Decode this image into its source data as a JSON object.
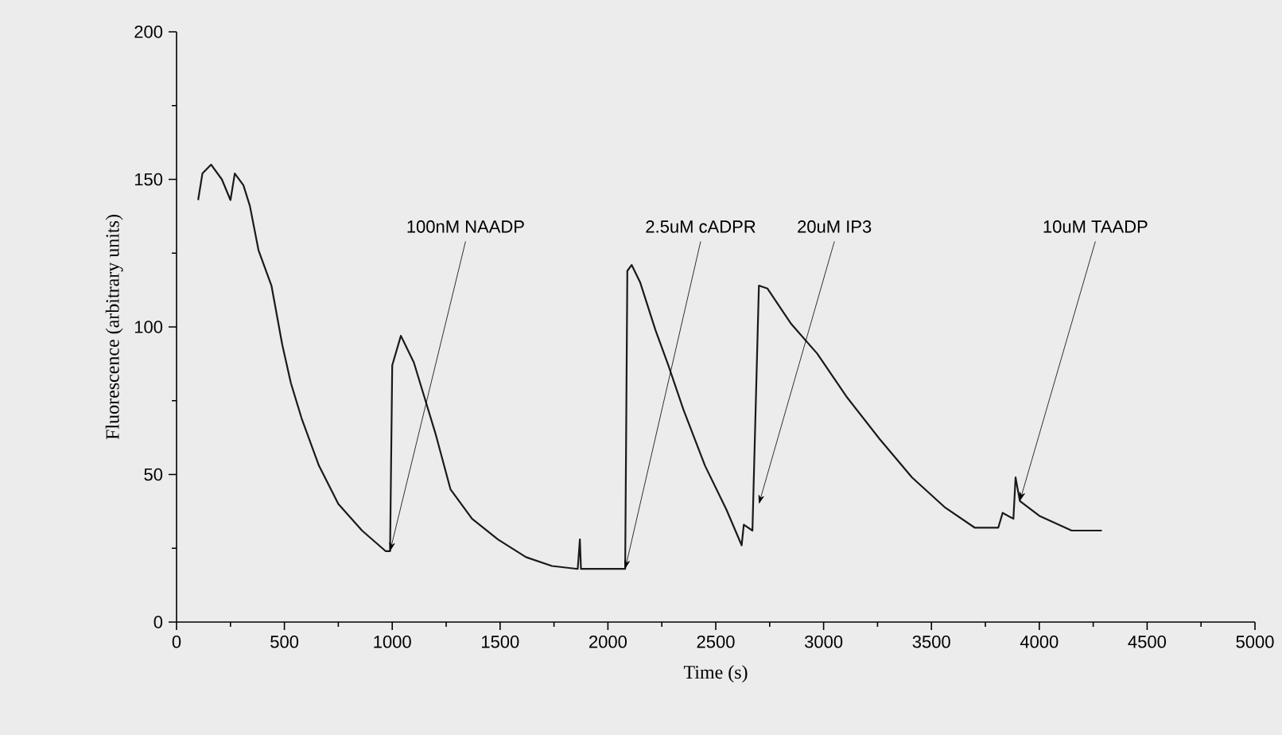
{
  "chart_data": {
    "type": "line",
    "xlabel": "Time (s)",
    "ylabel": "Fluorescence (arbitrary units)",
    "xlim": [
      0,
      5000
    ],
    "ylim": [
      0,
      200
    ],
    "xticks": [
      0,
      500,
      1000,
      1500,
      2000,
      2500,
      3000,
      3500,
      4000,
      4500,
      5000
    ],
    "yticks": [
      0,
      50,
      100,
      150,
      200
    ],
    "grid": false,
    "marker": "none",
    "line_style": "solid",
    "series": [
      {
        "color": "#1a1a1a",
        "x": [
          100,
          120,
          160,
          210,
          250,
          270,
          310,
          340,
          380,
          440,
          490,
          530,
          580,
          660,
          750,
          860,
          970,
          990,
          1000,
          1040,
          1100,
          1150,
          1200,
          1270,
          1370,
          1490,
          1620,
          1740,
          1860,
          1870,
          1875,
          1880,
          2080,
          2090,
          2110,
          2150,
          2220,
          2280,
          2350,
          2450,
          2550,
          2620,
          2630,
          2670,
          2700,
          2740,
          2850,
          2970,
          3110,
          3260,
          3410,
          3560,
          3700,
          3810,
          3830,
          3880,
          3890,
          3910,
          4000,
          4150,
          4290
        ],
        "values": [
          143,
          152,
          155,
          150,
          143,
          152,
          148,
          141,
          126,
          114,
          94,
          81,
          69,
          53,
          40,
          31,
          24,
          24,
          87,
          97,
          88,
          76,
          64,
          45,
          35,
          28,
          22,
          19,
          18,
          28,
          18,
          18,
          18,
          119,
          121,
          115,
          99,
          87,
          72,
          53,
          38,
          26,
          33,
          31,
          114,
          113,
          101,
          91,
          76,
          62,
          49,
          39,
          32,
          32,
          37,
          35,
          49,
          41,
          36,
          31,
          31
        ]
      }
    ],
    "annotations": [
      {
        "text": "100nM NAADP",
        "x": 990,
        "y": 24
      },
      {
        "text": "2.5uM cADPR",
        "x": 2080,
        "y": 18
      },
      {
        "text": "20uM IP3",
        "x": 2700,
        "y": 40
      },
      {
        "text": "10uM TAADP",
        "x": 3910,
        "y": 41
      }
    ]
  }
}
